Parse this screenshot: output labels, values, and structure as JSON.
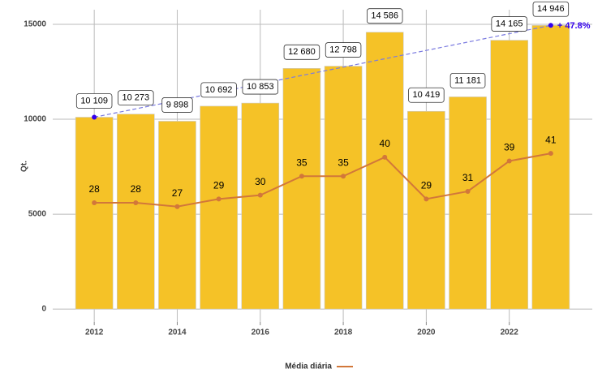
{
  "chart_data": {
    "type": "bar",
    "y_label": "Qt.",
    "x": [
      2012,
      2013,
      2014,
      2015,
      2016,
      2017,
      2018,
      2019,
      2020,
      2021,
      2022,
      2023
    ],
    "series": [
      {
        "type": "bar",
        "color": "#f5c227",
        "values": [
          10109,
          10273,
          9898,
          10692,
          10853,
          12680,
          12798,
          14586,
          10419,
          11181,
          14165,
          14946
        ],
        "value_labels": [
          "10 109",
          "10 273",
          "9 898",
          "10 692",
          "10 853",
          "12 680",
          "12 798",
          "14 586",
          "10 419",
          "11 181",
          "14 165",
          "14 946"
        ]
      },
      {
        "type": "line",
        "name": "Média diária",
        "color": "#d2773a",
        "axis": "y2",
        "values": [
          28,
          28,
          27,
          29,
          30,
          35,
          35,
          40,
          29,
          31,
          39,
          41
        ]
      }
    ],
    "trend": {
      "color": "#7b7be0",
      "point_color": "#3300ee"
    },
    "annotation": {
      "text": "+ 47.8%",
      "color": "#3300ee"
    },
    "xlim": [
      2011,
      2024
    ],
    "xticks": [
      2012,
      2014,
      2016,
      2018,
      2020,
      2022
    ],
    "ylim": [
      -680,
      15770
    ],
    "yticks": [
      0,
      5000,
      10000,
      15000
    ],
    "y2lim": [
      -3.4,
      78.85
    ],
    "grid": true,
    "legend": "bottom"
  }
}
